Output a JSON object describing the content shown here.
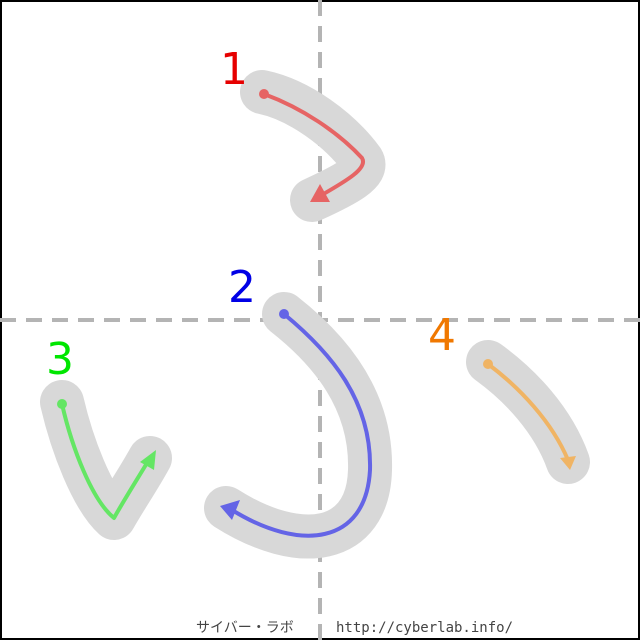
{
  "diagram": {
    "strokes": [
      {
        "number": "1",
        "color": "#e64b4b"
      },
      {
        "number": "2",
        "color": "#5050e6"
      },
      {
        "number": "3",
        "color": "#3ce63c"
      },
      {
        "number": "4",
        "color": "#f0960f"
      }
    ],
    "guide_color": "#b4b4b4",
    "shadow_color": "#d8d8d8",
    "footer": {
      "site_name": "サイバー・ラボ",
      "url": "http://cyberlab.info/"
    }
  }
}
